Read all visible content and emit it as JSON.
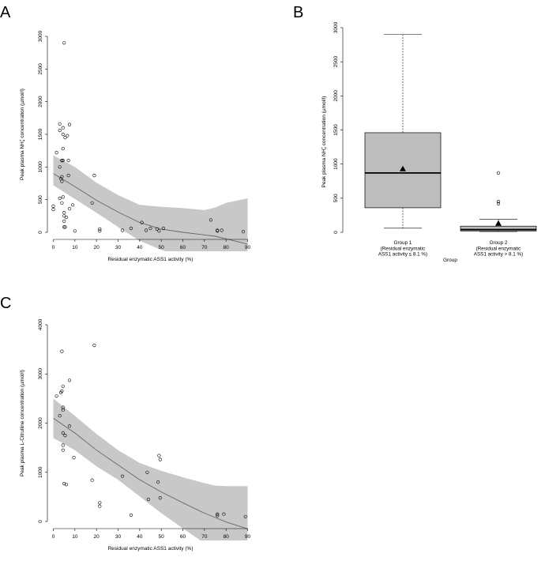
{
  "chart_data": [
    {
      "panel": "A",
      "type": "scatter",
      "xlabel": "Residual enzymatic ASS1 activity (%)",
      "ylabel_parts": [
        "Peak plasma NH",
        "4",
        "+",
        " concentration (µmol/l)"
      ],
      "xlim": [
        0,
        90
      ],
      "ylim": [
        0,
        3000
      ],
      "xticks": [
        0,
        10,
        20,
        30,
        40,
        50,
        60,
        70,
        80,
        90
      ],
      "yticks": [
        0,
        500,
        1000,
        1500,
        2000,
        2500,
        3000
      ],
      "points": [
        [
          0,
          350
        ],
        [
          0,
          400
        ],
        [
          1.5,
          1220
        ],
        [
          3,
          1000
        ],
        [
          3,
          1560
        ],
        [
          3,
          1660
        ],
        [
          3,
          520
        ],
        [
          3.5,
          820
        ],
        [
          4,
          850
        ],
        [
          4,
          1100
        ],
        [
          4,
          1100
        ],
        [
          4,
          780
        ],
        [
          4,
          450
        ],
        [
          4.5,
          1600
        ],
        [
          4.5,
          1500
        ],
        [
          4.5,
          1280
        ],
        [
          4.5,
          1100
        ],
        [
          4.5,
          540
        ],
        [
          5,
          300
        ],
        [
          5,
          250
        ],
        [
          5,
          170
        ],
        [
          5,
          80
        ],
        [
          5,
          2900
        ],
        [
          5.5,
          1450
        ],
        [
          5.5,
          80
        ],
        [
          6,
          230
        ],
        [
          6.5,
          1480
        ],
        [
          7,
          870
        ],
        [
          7.5,
          1650
        ],
        [
          7.5,
          360
        ],
        [
          7,
          1100
        ],
        [
          9,
          420
        ],
        [
          10,
          20
        ],
        [
          18,
          450
        ],
        [
          19,
          870
        ],
        [
          21.5,
          50
        ],
        [
          21.5,
          20
        ],
        [
          32,
          30
        ],
        [
          36,
          60
        ],
        [
          41,
          150
        ],
        [
          43,
          30
        ],
        [
          45,
          60
        ],
        [
          48,
          50
        ],
        [
          49,
          20
        ],
        [
          51,
          60
        ],
        [
          73,
          190
        ],
        [
          76,
          20
        ],
        [
          76,
          30
        ],
        [
          78,
          30
        ],
        [
          88,
          10
        ]
      ],
      "fit_x": [
        0,
        10,
        20,
        30,
        40,
        50,
        60,
        70,
        75,
        80,
        90
      ],
      "fit_y": [
        900,
        700,
        490,
        310,
        150,
        50,
        0,
        -40,
        -60,
        -100,
        -180
      ],
      "band_upper": [
        1180,
        1000,
        760,
        570,
        420,
        390,
        370,
        340,
        380,
        450,
        520
      ],
      "band_lower": [
        720,
        510,
        300,
        80,
        -130,
        -270,
        -370,
        -430,
        -480,
        -570,
        -660
      ]
    },
    {
      "panel": "B",
      "type": "box",
      "xlabel": "Group",
      "ylabel_parts": [
        "Peak plasma NH",
        "4",
        "+",
        " concentration (µmol/l)"
      ],
      "ylim": [
        0,
        3000
      ],
      "yticks": [
        0,
        500,
        1000,
        1500,
        2000,
        2500,
        3000
      ],
      "groups": [
        {
          "label_lines": [
            "Group 1",
            "(Residual enzymatic",
            "ASS1 activity ≤ 8.1 %)"
          ],
          "whisker_low": 60,
          "q1": 360,
          "median": 870,
          "q3": 1460,
          "whisker_high": 2900,
          "mean": 930,
          "outliers": []
        },
        {
          "label_lines": [
            "Group 2",
            "(Residual enzymatic",
            "ASS1 activity > 8.1 %)"
          ],
          "whisker_low": 10,
          "q1": 20,
          "median": 40,
          "q3": 90,
          "whisker_high": 190,
          "mean": 130,
          "outliers": [
            420,
            450,
            870
          ]
        }
      ]
    },
    {
      "panel": "C",
      "type": "scatter",
      "xlabel": "Residual enzymatic ASS1 activity (%)",
      "ylabel_parts": [
        "Peak plasma L-Citrulline concentration (µmol/l)"
      ],
      "xlim": [
        0,
        90
      ],
      "ylim": [
        0,
        4000
      ],
      "xticks": [
        0,
        10,
        20,
        30,
        40,
        50,
        60,
        70,
        80,
        90
      ],
      "yticks": [
        0,
        1000,
        2000,
        3000,
        4000
      ],
      "points": [
        [
          1.5,
          2550
        ],
        [
          3,
          2150
        ],
        [
          3.5,
          2620
        ],
        [
          4,
          3460
        ],
        [
          4,
          2650
        ],
        [
          4.5,
          2750
        ],
        [
          4.5,
          2320
        ],
        [
          4.5,
          2270
        ],
        [
          4.5,
          1800
        ],
        [
          4.5,
          1550
        ],
        [
          4.5,
          1450
        ],
        [
          5,
          770
        ],
        [
          5.5,
          1750
        ],
        [
          6,
          750
        ],
        [
          7.5,
          2870
        ],
        [
          7.5,
          1940
        ],
        [
          9.5,
          1300
        ],
        [
          18,
          840
        ],
        [
          19,
          3580
        ],
        [
          21.5,
          380
        ],
        [
          21.5,
          310
        ],
        [
          32,
          920
        ],
        [
          36,
          130
        ],
        [
          43.5,
          1000
        ],
        [
          44,
          450
        ],
        [
          48.5,
          800
        ],
        [
          49,
          1340
        ],
        [
          49.5,
          1260
        ],
        [
          49.5,
          480
        ],
        [
          76,
          150
        ],
        [
          76,
          120
        ],
        [
          79,
          150
        ],
        [
          89,
          100
        ]
      ],
      "fit_x": [
        0,
        10,
        20,
        30,
        40,
        50,
        60,
        70,
        75,
        80,
        90
      ],
      "fit_y": [
        2100,
        1800,
        1450,
        1150,
        850,
        600,
        380,
        170,
        80,
        -10,
        -150
      ],
      "band_upper": [
        2500,
        2150,
        1780,
        1450,
        1190,
        1030,
        900,
        780,
        730,
        720,
        720
      ],
      "band_lower": [
        1700,
        1450,
        1120,
        850,
        510,
        170,
        -140,
        -440,
        -570,
        -740,
        -1020
      ]
    }
  ]
}
